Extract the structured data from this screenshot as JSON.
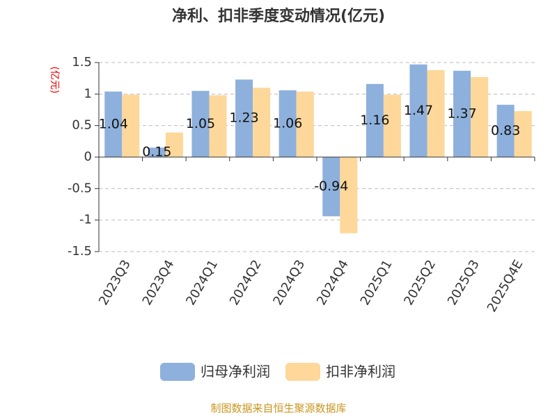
{
  "chart_data": {
    "type": "bar",
    "title": "净利、扣非季度变动情况(亿元)",
    "ylabel": "(亿元)",
    "categories": [
      "2023Q3",
      "2023Q4",
      "2024Q1",
      "2024Q2",
      "2024Q3",
      "2024Q4",
      "2025Q1",
      "2025Q2",
      "2025Q3",
      "2025Q4E"
    ],
    "series": [
      {
        "name": "归母净利润",
        "color": "#8eb0dc",
        "values": [
          1.04,
          0.15,
          1.05,
          1.23,
          1.06,
          -0.94,
          1.16,
          1.47,
          1.37,
          0.83
        ]
      },
      {
        "name": "扣非净利润",
        "color": "#fdd89a",
        "values": [
          0.99,
          0.39,
          0.98,
          1.1,
          1.04,
          -1.21,
          0.99,
          1.38,
          1.27,
          0.73
        ]
      }
    ],
    "ylim": [
      -1.5,
      1.5
    ],
    "yticks": [
      -1.5,
      -1,
      -0.5,
      0,
      0.5,
      1,
      1.5
    ],
    "grid": true,
    "source": "制图数据来自恒生聚源数据库"
  }
}
